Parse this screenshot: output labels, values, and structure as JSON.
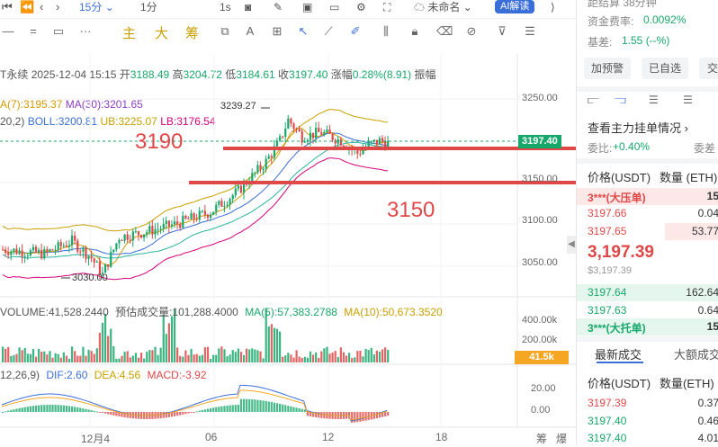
{
  "toolbar": {
    "interval": "15分",
    "interval_alt": "1分",
    "speed": "1s",
    "layout_name": "未命名",
    "ai_label": "AI解读"
  },
  "drawbar": {
    "main": "主",
    "ind1": "大",
    "ind2": "筹"
  },
  "info": {
    "symbol": "T永续",
    "datetime": "2025-12-04 15:15",
    "open_label": "开",
    "open": "3188.49",
    "high_label": "高",
    "high": "3204.72",
    "low_label": "低",
    "low": "3184.61",
    "close_label": "收",
    "close": "3197.40",
    "change_label": "涨幅",
    "change": "0.28%(8.91)",
    "amp_label": "振幅"
  },
  "ma_line": {
    "ma7": "A(7):3195.37",
    "ma30": "MA(30):3201.65"
  },
  "boll_line": {
    "param": "20,2)",
    "boll": "BOLL:3200.81",
    "ub": "UB:3225.07",
    "lb": "LB:3176.54"
  },
  "price_axis": [
    "3250.00",
    "3150.00",
    "3100.00",
    "3050.00"
  ],
  "current_price_badge": "3197.40",
  "annotations": {
    "upper": "3190",
    "lower": "3150"
  },
  "high_marker": "3239.27",
  "low_marker": "3030.00",
  "volume": {
    "vol": "VOLUME:41,528.2440",
    "est_label": "预估成交量:",
    "est": "101,288.4000",
    "ma5": "MA(5):57,383.2788",
    "ma10": "MA(10):50,673.3520",
    "axis": [
      "400.00k",
      "200.00k"
    ],
    "badge": "41.5k"
  },
  "macd": {
    "param": "12,26,9)",
    "dif": "DIF:2.60",
    "dea": "DEA:4.56",
    "macd": "MACD:-3.92",
    "axis": [
      "20.00",
      "0.00"
    ]
  },
  "x_axis": [
    "12月4",
    "06",
    "12",
    "18"
  ],
  "x_right": {
    "a": "筹",
    "b": "爆"
  },
  "right_panel": {
    "top_cut": "距结算  38分钟",
    "funding_label": "资金费率:",
    "funding": "0.0092%",
    "basis_label": "基差:",
    "basis": "1.55 (--%)",
    "btn_alert": "加预警",
    "btn_fav": "已自选",
    "btn_more": "交",
    "main_orders": "查看主力挂单情况",
    "ratio_label": "委比:",
    "ratio": "+0.40%",
    "diff_label": "委差",
    "col_price": "价格(USDT)",
    "col_qty": "数量 (ETH)",
    "asks": [
      {
        "price": "3***(大压单)",
        "qty": "15"
      },
      {
        "price": "3197.66",
        "qty": "0.04"
      },
      {
        "price": "3197.65",
        "qty": "53.77"
      }
    ],
    "last_price": "3,197.39",
    "last_price_sub": "$3,197.39",
    "bids": [
      {
        "price": "3197.64",
        "qty": "162.64"
      },
      {
        "price": "3197.63",
        "qty": "0.64"
      },
      {
        "price": "3***(大托单)",
        "qty": "15"
      }
    ],
    "tab_latest": "最新成交",
    "tab_large": "大额成交",
    "trade_col_price": "价格(USDT)",
    "trade_col_qty": "数量(ETH)",
    "trades": [
      {
        "price": "3197.39",
        "qty": "0.37"
      },
      {
        "price": "3197.40",
        "qty": "0.46"
      },
      {
        "price": "3197.40",
        "qty": "4.01"
      }
    ]
  },
  "colors": {
    "up": "#18a86b",
    "down": "#e04848",
    "accent": "#3b6fd8",
    "annotation": "#e04848"
  }
}
